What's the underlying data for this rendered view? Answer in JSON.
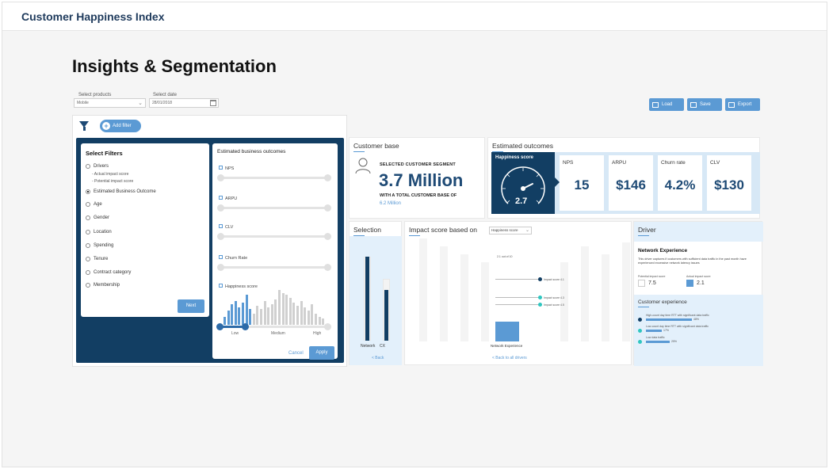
{
  "app": {
    "title": "Customer Happiness Index"
  },
  "page": {
    "title": "Insights & Segmentation"
  },
  "controls": {
    "products_label": "Select products",
    "products_value": "Mobile",
    "date_label": "Select date",
    "date_value": "28/01/2018"
  },
  "toolbar": {
    "load": "Load",
    "save": "Save",
    "export": "Export"
  },
  "filters": {
    "add_filter": "Add filter",
    "select_title": "Select Filters",
    "options": [
      {
        "label": "Drivers",
        "selected": false
      },
      {
        "label": "Estimated Business Outcome",
        "selected": true
      },
      {
        "label": "Age",
        "selected": false
      },
      {
        "label": "Gender",
        "selected": false
      },
      {
        "label": "Location",
        "selected": false
      },
      {
        "label": "Spending",
        "selected": false
      },
      {
        "label": "Tenure",
        "selected": false
      },
      {
        "label": "Contract category",
        "selected": false
      },
      {
        "label": "Membership",
        "selected": false
      }
    ],
    "driver_sub": [
      "- Actual impact score",
      "- Potential impact score"
    ],
    "next": "Next"
  },
  "outcomes_filter": {
    "title": "Estimated business outcomes",
    "sliders": [
      "NPS",
      "ARPU",
      "CLV",
      "Churn Rate"
    ],
    "happiness_label": "Happiness score",
    "axis": [
      "Low",
      "Medium",
      "High"
    ],
    "cancel": "Cancel",
    "apply": "Apply"
  },
  "customer_base": {
    "title": "Customer base",
    "segment_label": "SELECTED CUSTOMER SEGMENT",
    "segment_value": "3.7 Million",
    "total_label": "WITH A TOTAL CUSTOMER BASE OF",
    "total_value": "6.2 Million"
  },
  "estimated_outcomes": {
    "title": "Estimated outcomes",
    "gauge_label": "Happiness score",
    "gauge_value": "2.7",
    "metrics": [
      {
        "label": "NPS",
        "value": "15"
      },
      {
        "label": "ARPU",
        "value": "$146"
      },
      {
        "label": "Churn rate",
        "value": "4.2%"
      },
      {
        "label": "CLV",
        "value": "$130"
      }
    ]
  },
  "selection": {
    "title": "Selection",
    "bars": [
      {
        "label": "Network",
        "fill": 1.0
      },
      {
        "label": "CX",
        "fill": 0.6
      }
    ],
    "back": "< Back"
  },
  "impact": {
    "title": "Impact score based on",
    "dropdown": "Happiness score",
    "annotation": "2.1 out of 10",
    "callouts": [
      {
        "text": "Impact score 4.1",
        "color": "#123e63"
      },
      {
        "text": "Impact score 4.3",
        "color": "#2fc6c0"
      },
      {
        "text": "Impact score 4.5",
        "color": "#2fc6c0"
      }
    ],
    "bar_label": "Network Experience",
    "back_link": "< Back to all drivers"
  },
  "driver": {
    "title": "Driver",
    "name": "Network Experience",
    "description": "This driver captures if customers with sufficient data traffic in the past month have experienced excessive network latency issues",
    "potential_label": "Potential impact score",
    "potential_value": "7.5",
    "actual_label": "Actual impact score",
    "actual_value": "2.1",
    "cx_title": "Customer experience",
    "cx_rows": [
      {
        "text": "High-count day time RTT with significant data traffic",
        "pct": "48%",
        "color": "#123e63",
        "fill": 0.48
      },
      {
        "text": "Low-count day time RTT with significant data traffic",
        "pct": "17%",
        "color": "#2fc6c0",
        "fill": 0.17
      },
      {
        "text": "Low data traffic",
        "pct": "25%",
        "color": "#2fc6c0",
        "fill": 0.25
      }
    ]
  }
}
